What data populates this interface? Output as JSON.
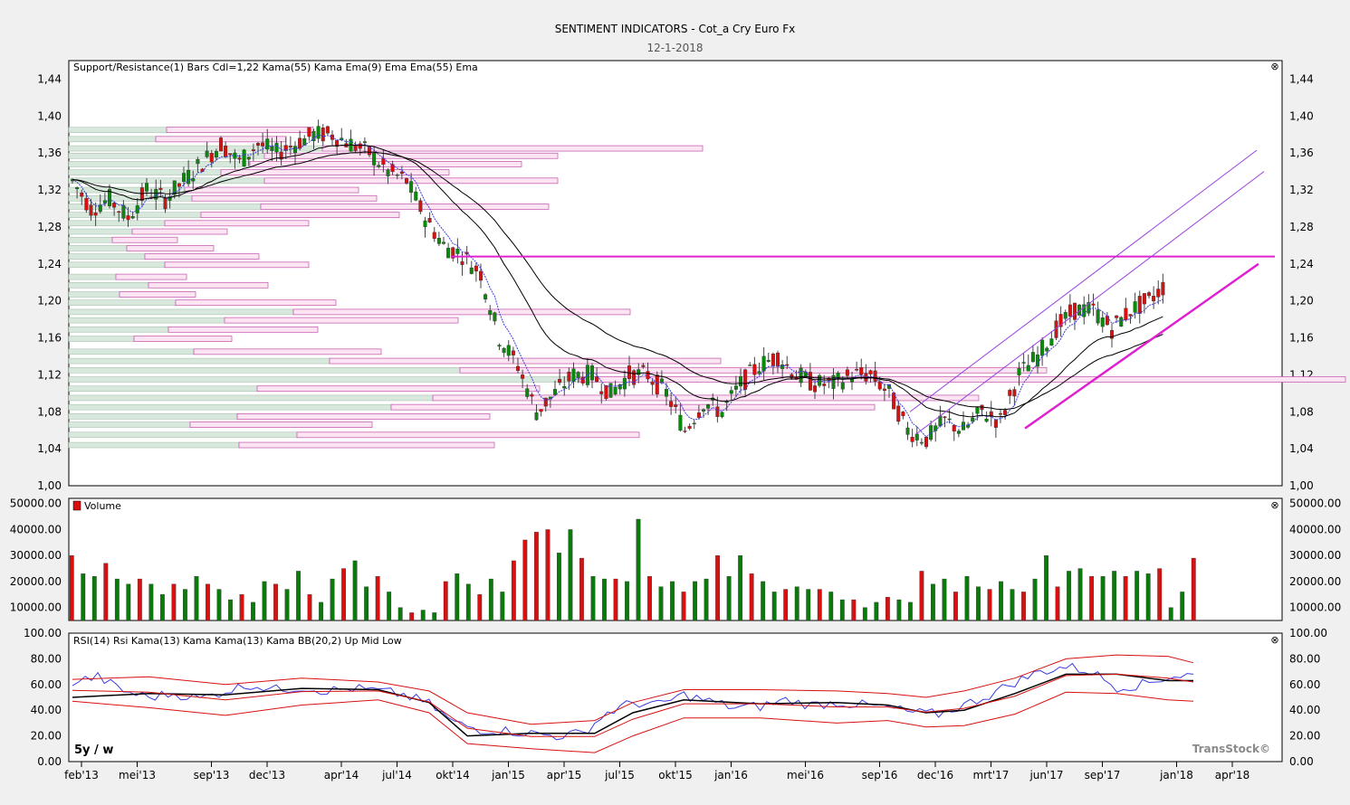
{
  "header": {
    "title": "SENTIMENT INDICATORS - Cot_a  Cry Euro Fx",
    "date": "12-1-2018"
  },
  "watermark": "TransStock©",
  "period_label": "5y / w",
  "x_axis": {
    "labels": [
      "feb'13",
      "mei'13",
      "sep'13",
      "dec'13",
      "apr'14",
      "jul'14",
      "okt'14",
      "jan'15",
      "apr'15",
      "jul'15",
      "okt'15",
      "jan'16",
      "mei'16",
      "sep'16",
      "dec'16",
      "mrt'17",
      "jun'17",
      "sep'17",
      "jan'18",
      "apr'18"
    ]
  },
  "chart_data": [
    {
      "type": "candlestick",
      "legend": [
        "Support/Resistance(1)",
        "Bars",
        "Cdl=1,22",
        "Kama(55)",
        "Kama",
        "Ema(9)",
        "Ema",
        "Ema(55)",
        "Ema"
      ],
      "ylim": [
        1.0,
        1.46
      ],
      "y_ticks": [
        "1,44",
        "1,40",
        "1,36",
        "1,32",
        "1,28",
        "1,24",
        "1,20",
        "1,16",
        "1,12",
        "1,08",
        "1,04",
        "1,00"
      ],
      "close_path": [
        [
          "feb'13",
          1.33
        ],
        [
          "mrt'13",
          1.3
        ],
        [
          "apr'13",
          1.31
        ],
        [
          "mei'13",
          1.29
        ],
        [
          "jun'13",
          1.32
        ],
        [
          "jul'13",
          1.31
        ],
        [
          "aug'13",
          1.33
        ],
        [
          "sep'13",
          1.35
        ],
        [
          "okt'13",
          1.37
        ],
        [
          "nov'13",
          1.35
        ],
        [
          "dec'13",
          1.37
        ],
        [
          "jan'14",
          1.36
        ],
        [
          "feb'14",
          1.37
        ],
        [
          "mrt'14",
          1.38
        ],
        [
          "apr'14",
          1.38
        ],
        [
          "mei'14",
          1.37
        ],
        [
          "jun'14",
          1.36
        ],
        [
          "jul'14",
          1.34
        ],
        [
          "aug'14",
          1.33
        ],
        [
          "sep'14",
          1.29
        ],
        [
          "okt'14",
          1.26
        ],
        [
          "nov'14",
          1.25
        ],
        [
          "dec'14",
          1.23
        ],
        [
          "jan'15",
          1.16
        ],
        [
          "feb'15",
          1.13
        ],
        [
          "mrt'15",
          1.08
        ],
        [
          "apr'15",
          1.1
        ],
        [
          "mei'15",
          1.12
        ],
        [
          "jun'15",
          1.12
        ],
        [
          "jul'15",
          1.1
        ],
        [
          "aug'15",
          1.12
        ],
        [
          "sep'15",
          1.12
        ],
        [
          "okt'15",
          1.1
        ],
        [
          "nov'15",
          1.06
        ],
        [
          "dec'15",
          1.09
        ],
        [
          "jan'16",
          1.08
        ],
        [
          "feb'16",
          1.11
        ],
        [
          "mrt'16",
          1.13
        ],
        [
          "apr'16",
          1.14
        ],
        [
          "mei'16",
          1.12
        ],
        [
          "jun'16",
          1.11
        ],
        [
          "jul'16",
          1.11
        ],
        [
          "aug'16",
          1.12
        ],
        [
          "sep'16",
          1.12
        ],
        [
          "okt'16",
          1.1
        ],
        [
          "nov'16",
          1.06
        ],
        [
          "dec'16",
          1.05
        ],
        [
          "jan'17",
          1.07
        ],
        [
          "feb'17",
          1.06
        ],
        [
          "mrt'17",
          1.08
        ],
        [
          "apr'17",
          1.07
        ],
        [
          "mei'17",
          1.12
        ],
        [
          "jun'17",
          1.14
        ],
        [
          "jul'17",
          1.17
        ],
        [
          "aug'17",
          1.19
        ],
        [
          "sep'17",
          1.19
        ],
        [
          "okt'17",
          1.17
        ],
        [
          "nov'17",
          1.19
        ],
        [
          "dec'17",
          1.2
        ],
        [
          "jan'18",
          1.22
        ]
      ],
      "horizontal_line": 1.248,
      "trend_support": [
        [
          "mrt'17",
          1.06
        ],
        [
          "mrt'18",
          1.24
        ]
      ]
    },
    {
      "type": "bar",
      "legend": [
        "Volume"
      ],
      "ylim": [
        5000,
        52000
      ],
      "y_ticks": [
        "50000.00",
        "40000.00",
        "30000.00",
        "20000.00",
        "10000.00"
      ],
      "values": [
        30000,
        23000,
        22000,
        27000,
        21000,
        19000,
        21000,
        19000,
        15000,
        19000,
        17000,
        22000,
        19000,
        17000,
        13000,
        15000,
        12000,
        20000,
        19000,
        17000,
        24000,
        15000,
        12000,
        21000,
        25000,
        28000,
        18000,
        22000,
        16000,
        10000,
        8000,
        9000,
        8000,
        20000,
        23000,
        19000,
        15000,
        21000,
        16000,
        28000,
        36000,
        39000,
        40000,
        31000,
        40000,
        29000,
        22000,
        21000,
        21000,
        20000,
        44000,
        22000,
        18000,
        20000,
        16000,
        20000,
        21000,
        30000,
        22000,
        30000,
        23000,
        20000,
        16000,
        17000,
        18000,
        17000,
        17000,
        16000,
        13000,
        13000,
        10000,
        12000,
        14000,
        13000,
        12000,
        24000,
        19000,
        21000,
        16000,
        22000,
        18000,
        17000,
        20000,
        17000,
        16000,
        21000,
        30000,
        18000,
        24000,
        25000,
        22000,
        22000,
        24000,
        22000,
        24000,
        23000,
        25000,
        10000,
        16000,
        29000
      ]
    },
    {
      "type": "line",
      "legend": [
        "RSI(14)",
        "Rsi",
        "Kama(13)",
        "Kama",
        "Kama(13)",
        "Kama",
        "BB(20,2)",
        "Up",
        "Mid",
        "Low"
      ],
      "ylim": [
        0,
        100
      ],
      "y_ticks": [
        "100.00",
        "80.00",
        "60.00",
        "40.00",
        "20.00",
        "0.00"
      ],
      "series": [
        {
          "name": "Rsi",
          "values": [
            [
              0,
              62
            ],
            [
              2,
              66
            ],
            [
              4,
              55
            ],
            [
              6,
              50
            ],
            [
              8,
              53
            ],
            [
              10,
              49
            ],
            [
              12,
              55
            ],
            [
              14,
              60
            ],
            [
              16,
              56
            ],
            [
              18,
              58
            ],
            [
              20,
              55
            ],
            [
              22,
              57
            ],
            [
              24,
              55
            ],
            [
              26,
              52
            ],
            [
              28,
              45
            ],
            [
              30,
              30
            ],
            [
              32,
              25
            ],
            [
              34,
              24
            ],
            [
              36,
              22
            ],
            [
              38,
              20
            ],
            [
              40,
              22
            ],
            [
              42,
              38
            ],
            [
              44,
              46
            ],
            [
              46,
              44
            ],
            [
              48,
              52
            ],
            [
              50,
              47
            ],
            [
              52,
              42
            ],
            [
              54,
              43
            ],
            [
              56,
              48
            ],
            [
              58,
              44
            ],
            [
              60,
              46
            ],
            [
              62,
              44
            ],
            [
              64,
              42
            ],
            [
              66,
              38
            ],
            [
              68,
              37
            ],
            [
              70,
              44
            ],
            [
              72,
              52
            ],
            [
              74,
              62
            ],
            [
              76,
              70
            ],
            [
              78,
              74
            ],
            [
              80,
              70
            ],
            [
              82,
              58
            ],
            [
              84,
              60
            ],
            [
              86,
              66
            ],
            [
              88,
              68
            ]
          ]
        },
        {
          "name": "Kama",
          "values": [
            [
              0,
              50
            ],
            [
              6,
              53
            ],
            [
              12,
              52
            ],
            [
              18,
              57
            ],
            [
              24,
              56
            ],
            [
              28,
              46
            ],
            [
              31,
              20
            ],
            [
              36,
              22
            ],
            [
              41,
              22
            ],
            [
              44,
              38
            ],
            [
              48,
              48
            ],
            [
              54,
              45
            ],
            [
              60,
              46
            ],
            [
              64,
              44
            ],
            [
              67,
              38
            ],
            [
              70,
              40
            ],
            [
              74,
              53
            ],
            [
              78,
              68
            ],
            [
              82,
              68
            ],
            [
              86,
              63
            ],
            [
              88,
              63
            ]
          ]
        },
        {
          "name": "Up",
          "values": [
            [
              0,
              64
            ],
            [
              6,
              66
            ],
            [
              12,
              60
            ],
            [
              18,
              65
            ],
            [
              24,
              62
            ],
            [
              28,
              55
            ],
            [
              31,
              38
            ],
            [
              36,
              29
            ],
            [
              41,
              32
            ],
            [
              44,
              46
            ],
            [
              48,
              56
            ],
            [
              54,
              56
            ],
            [
              60,
              55
            ],
            [
              64,
              53
            ],
            [
              67,
              50
            ],
            [
              70,
              55
            ],
            [
              74,
              65
            ],
            [
              78,
              80
            ],
            [
              82,
              83
            ],
            [
              86,
              82
            ],
            [
              88,
              77
            ]
          ]
        },
        {
          "name": "Low",
          "values": [
            [
              0,
              47
            ],
            [
              6,
              42
            ],
            [
              12,
              36
            ],
            [
              18,
              44
            ],
            [
              24,
              48
            ],
            [
              28,
              38
            ],
            [
              31,
              14
            ],
            [
              36,
              10
            ],
            [
              41,
              7
            ],
            [
              44,
              20
            ],
            [
              48,
              34
            ],
            [
              54,
              34
            ],
            [
              60,
              30
            ],
            [
              64,
              32
            ],
            [
              67,
              27
            ],
            [
              70,
              28
            ],
            [
              74,
              37
            ],
            [
              78,
              54
            ],
            [
              82,
              53
            ],
            [
              86,
              48
            ],
            [
              88,
              47
            ]
          ]
        }
      ]
    }
  ]
}
